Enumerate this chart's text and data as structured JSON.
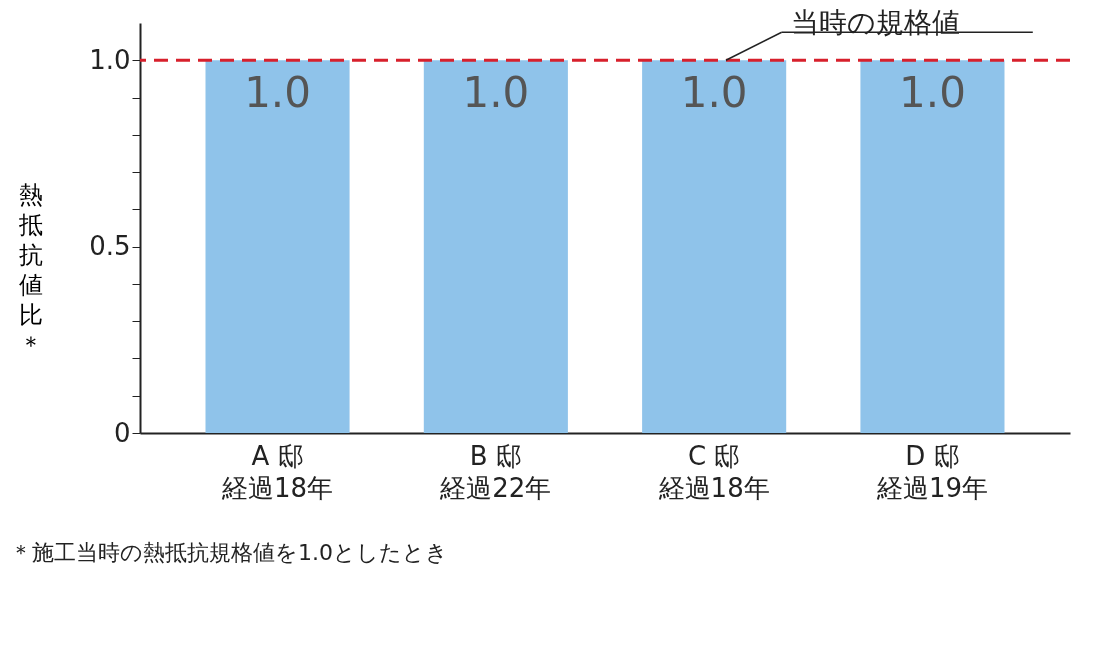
{
  "chart_data": {
    "type": "bar",
    "ylabel": "熱抵抗値比＊",
    "categories": [
      "A 邸経過18年",
      "B 邸経過22年",
      "C 邸経過18年",
      "D 邸経過19年"
    ],
    "values": [
      1.0,
      1.0,
      1.0,
      1.0
    ],
    "color": "#8fc3ea",
    "value_labels": [
      "1.0",
      "1.0",
      "1.0",
      "1.0"
    ],
    "ylim": [
      0,
      1.1
    ],
    "yticks": [
      0,
      {
        "value": 0.1,
        "label": null
      },
      {
        "value": 0.2,
        "label": null
      },
      {
        "value": 0.3,
        "label": null
      },
      {
        "value": 0.4,
        "label": null
      },
      0.5,
      {
        "value": 0.6,
        "label": null
      },
      {
        "value": 0.7,
        "label": null
      },
      {
        "value": 0.8,
        "label": null
      },
      {
        "value": 0.9,
        "label": null
      },
      {
        "value": 1.0,
        "label": "1.0"
      }
    ],
    "ref_lines": [
      {
        "axis": "y",
        "value": 1.0,
        "label": "当時の規格値",
        "color": "#d7202c",
        "line_style": "dashed"
      }
    ],
    "grid": false,
    "annotations": [
      "＊施工当時の熱抵抗規格値を1.0としたとき"
    ]
  }
}
